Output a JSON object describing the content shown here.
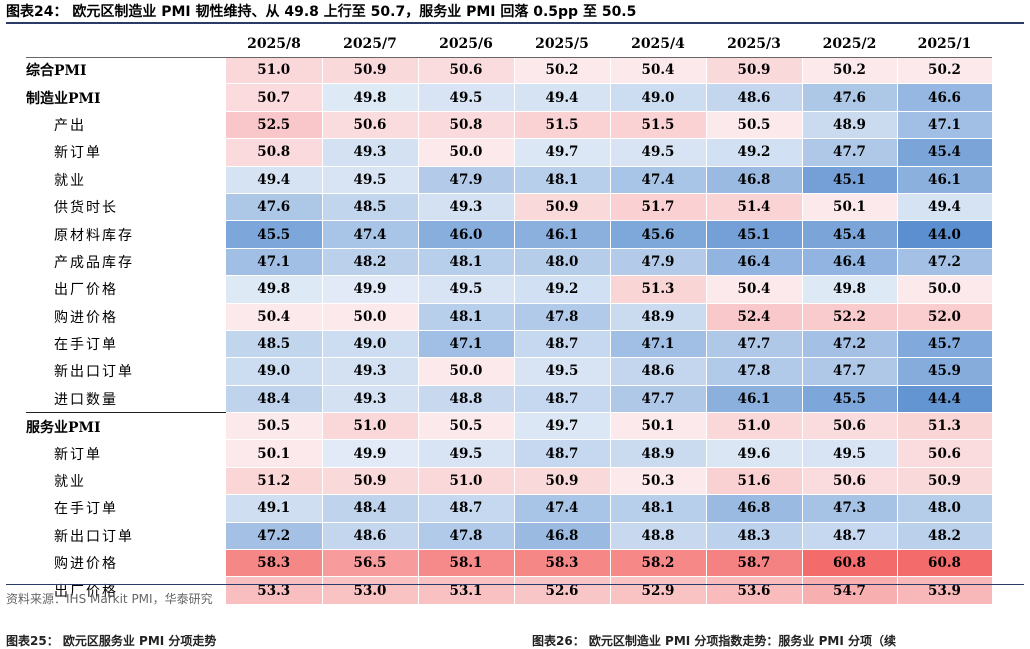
{
  "title": "图表24：  欧元区制造业 PMI 韧性维持、从 49.8 上行至 50.7，服务业 PMI 回落 0.5pp 至 50.5",
  "columns": [
    "2025/8",
    "2025/7",
    "2025/6",
    "2025/5",
    "2025/4",
    "2025/3",
    "2025/2",
    "2025/1"
  ],
  "rows": [
    {
      "label": "综合PMI",
      "sub": false,
      "sep": false,
      "values": [
        "51.0",
        "50.9",
        "50.6",
        "50.2",
        "50.4",
        "50.9",
        "50.2",
        "50.2"
      ]
    },
    {
      "label": "制造业PMI",
      "sub": false,
      "sep": false,
      "values": [
        "50.7",
        "49.8",
        "49.5",
        "49.4",
        "49.0",
        "48.6",
        "47.6",
        "46.6"
      ]
    },
    {
      "label": "产出",
      "sub": true,
      "sep": false,
      "values": [
        "52.5",
        "50.6",
        "50.8",
        "51.5",
        "51.5",
        "50.5",
        "48.9",
        "47.1"
      ]
    },
    {
      "label": "新订单",
      "sub": true,
      "sep": false,
      "values": [
        "50.8",
        "49.3",
        "50.0",
        "49.7",
        "49.5",
        "49.2",
        "47.7",
        "45.4"
      ]
    },
    {
      "label": "就业",
      "sub": true,
      "sep": false,
      "values": [
        "49.4",
        "49.5",
        "47.9",
        "48.1",
        "47.4",
        "46.8",
        "45.1",
        "46.1"
      ]
    },
    {
      "label": "供货时长",
      "sub": true,
      "sep": false,
      "values": [
        "47.6",
        "48.5",
        "49.3",
        "50.9",
        "51.7",
        "51.4",
        "50.1",
        "49.4"
      ]
    },
    {
      "label": "原材料库存",
      "sub": true,
      "sep": false,
      "values": [
        "45.5",
        "47.4",
        "46.0",
        "46.1",
        "45.6",
        "45.1",
        "45.4",
        "44.0"
      ]
    },
    {
      "label": "产成品库存",
      "sub": true,
      "sep": false,
      "values": [
        "47.1",
        "48.2",
        "48.1",
        "48.0",
        "47.9",
        "46.4",
        "46.4",
        "47.2"
      ]
    },
    {
      "label": "出厂价格",
      "sub": true,
      "sep": false,
      "values": [
        "49.8",
        "49.9",
        "49.5",
        "49.2",
        "51.3",
        "50.4",
        "49.8",
        "50.0"
      ]
    },
    {
      "label": "购进价格",
      "sub": true,
      "sep": false,
      "values": [
        "50.4",
        "50.0",
        "48.1",
        "47.8",
        "48.9",
        "52.4",
        "52.2",
        "52.0"
      ]
    },
    {
      "label": "在手订单",
      "sub": true,
      "sep": false,
      "values": [
        "48.5",
        "49.0",
        "47.1",
        "48.7",
        "47.1",
        "47.7",
        "47.2",
        "45.7"
      ]
    },
    {
      "label": "新出口订单",
      "sub": true,
      "sep": false,
      "values": [
        "49.0",
        "49.3",
        "50.0",
        "49.5",
        "48.6",
        "47.8",
        "47.7",
        "45.9"
      ]
    },
    {
      "label": "进口数量",
      "sub": true,
      "sep": false,
      "values": [
        "48.4",
        "49.3",
        "48.8",
        "48.7",
        "47.7",
        "46.1",
        "45.5",
        "44.4"
      ]
    },
    {
      "label": "服务业PMI",
      "sub": false,
      "sep": true,
      "values": [
        "50.5",
        "51.0",
        "50.5",
        "49.7",
        "50.1",
        "51.0",
        "50.6",
        "51.3"
      ]
    },
    {
      "label": "新订单",
      "sub": true,
      "sep": false,
      "values": [
        "50.1",
        "49.9",
        "49.5",
        "48.7",
        "48.9",
        "49.6",
        "49.5",
        "50.6"
      ]
    },
    {
      "label": "就业",
      "sub": true,
      "sep": false,
      "values": [
        "51.2",
        "50.9",
        "51.0",
        "50.9",
        "50.3",
        "51.6",
        "50.6",
        "50.9"
      ]
    },
    {
      "label": "在手订单",
      "sub": true,
      "sep": false,
      "values": [
        "49.1",
        "48.4",
        "48.7",
        "47.4",
        "48.1",
        "46.8",
        "47.3",
        "48.0"
      ]
    },
    {
      "label": "新出口订单",
      "sub": true,
      "sep": false,
      "values": [
        "47.2",
        "48.6",
        "47.8",
        "46.8",
        "48.8",
        "48.3",
        "48.7",
        "48.2"
      ]
    },
    {
      "label": "购进价格",
      "sub": true,
      "sep": false,
      "values": [
        "58.3",
        "56.5",
        "58.1",
        "58.3",
        "58.2",
        "58.7",
        "60.8",
        "60.8"
      ]
    },
    {
      "label": "出厂价格",
      "sub": true,
      "sep": false,
      "values": [
        "53.3",
        "53.0",
        "53.1",
        "52.6",
        "52.9",
        "53.6",
        "54.7",
        "53.9"
      ]
    }
  ],
  "colors": {
    "blue_deep": "#5b8fd0",
    "blue_light": "#e3ecf7",
    "neutral": "#fbe9ec",
    "red_light": "#fbe3e5",
    "red_deep": "#f46b6b"
  },
  "source": "资料来源：IHS Markit PMI，华泰研究",
  "footer_left": "图表25：  欧元区服务业 PMI 分项走势",
  "footer_right": "图表26：  欧元区制造业 PMI 分项指数走势：服务业 PMI 分项（续"
}
